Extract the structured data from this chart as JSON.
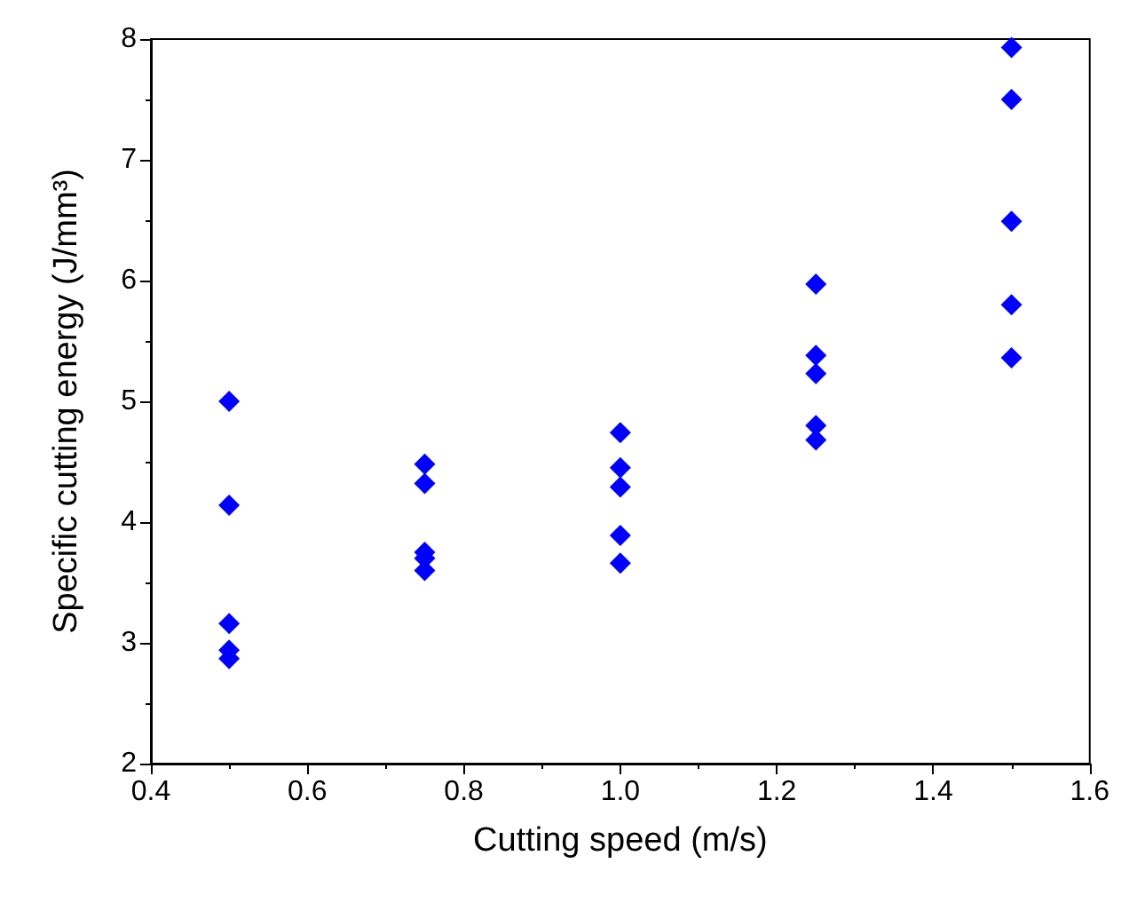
{
  "chart_data": {
    "type": "scatter",
    "xlabel": "Cutting speed (m/s)",
    "ylabel": "Specific cutting energy (J/mm³)",
    "x": [
      0.5,
      0.5,
      0.5,
      0.5,
      0.5,
      0.75,
      0.75,
      0.75,
      0.75,
      0.75,
      1.0,
      1.0,
      1.0,
      1.0,
      1.0,
      1.25,
      1.25,
      1.25,
      1.25,
      1.25,
      1.5,
      1.5,
      1.5,
      1.5,
      1.5
    ],
    "values": [
      5.0,
      4.14,
      3.16,
      2.94,
      2.87,
      4.48,
      4.32,
      3.75,
      3.7,
      3.6,
      4.74,
      4.45,
      4.29,
      3.89,
      3.66,
      5.97,
      5.38,
      5.23,
      4.8,
      4.68,
      7.93,
      7.5,
      6.49,
      5.8,
      5.36
    ],
    "color": "#0000ff",
    "marker": "diamond",
    "xlim": [
      0.4,
      1.6
    ],
    "xticks": [
      0.4,
      0.6,
      0.8,
      {
        "value": 1,
        "label": "1.0"
      },
      1.2,
      1.4,
      1.6
    ],
    "ylim": [
      2,
      8
    ],
    "yticks": [
      2,
      3,
      4,
      5,
      6,
      7,
      8
    ],
    "grid": false
  }
}
